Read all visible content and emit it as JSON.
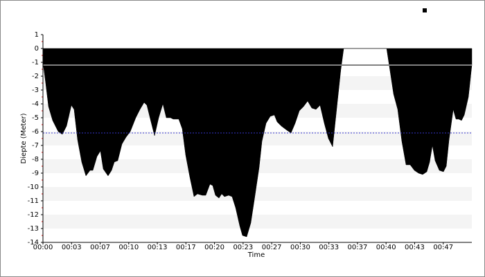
{
  "chart_data": {
    "type": "area",
    "x_label": "Time",
    "y_label": "Diepte (Meter)",
    "color": "#000000",
    "x": [
      0,
      0.32,
      0.65,
      1.13,
      1.78,
      2.26,
      2.75,
      3.31,
      3.63,
      4.04,
      4.52,
      5.01,
      5.49,
      5.82,
      6.3,
      6.7,
      7.03,
      7.59,
      8.0,
      8.32,
      8.72,
      9.21,
      9.69,
      10.18,
      10.82,
      11.31,
      11.79,
      12.12,
      12.52,
      13.01,
      13.49,
      13.98,
      14.38,
      14.86,
      15.19,
      15.83,
      16.24,
      16.64,
      17.13,
      17.61,
      18.01,
      18.58,
      18.98,
      19.47,
      19.79,
      20.11,
      20.52,
      20.84,
      21.16,
      21.65,
      22.05,
      22.46,
      22.94,
      23.26,
      23.75,
      24.23,
      24.72,
      25.2,
      25.53,
      26.01,
      26.5,
      26.98,
      27.3,
      27.79,
      28.43,
      28.92,
      29.4,
      29.89,
      30.37,
      30.86,
      31.34,
      31.83,
      32.31,
      32.8,
      33.28,
      33.77,
      34.25,
      34.73,
      35.06,
      40.07,
      40.39,
      40.88,
      41.36,
      41.84,
      42.33,
      42.81,
      43.3,
      43.78,
      44.27,
      44.75,
      45.08,
      45.4,
      45.72,
      46.21,
      46.69,
      47.02,
      47.34,
      47.83,
      48.15,
      48.47,
      48.8,
      49.12,
      49.6,
      50
    ],
    "values": [
      -1,
      -2.5,
      -4.2,
      -5.2,
      -6,
      -6.2,
      -5.6,
      -4.1,
      -4.4,
      -6.6,
      -8.2,
      -9.2,
      -8.8,
      -8.8,
      -7.8,
      -7.4,
      -8.7,
      -9.2,
      -8.8,
      -8.2,
      -8.1,
      -6.9,
      -6.4,
      -6,
      -5,
      -4.4,
      -3.9,
      -4.1,
      -5.1,
      -6.3,
      -5,
      -4,
      -5,
      -5,
      -5.1,
      -5.1,
      -5.8,
      -7.7,
      -9.3,
      -10.7,
      -10.5,
      -10.6,
      -10.6,
      -9.8,
      -9.9,
      -10.6,
      -10.8,
      -10.5,
      -10.7,
      -10.6,
      -10.7,
      -11.5,
      -12.8,
      -13.5,
      -13.6,
      -12.6,
      -10.6,
      -8.6,
      -6.7,
      -5.4,
      -4.9,
      -4.8,
      -5.3,
      -5.6,
      -5.9,
      -6.1,
      -5.4,
      -4.5,
      -4.2,
      -3.8,
      -4.3,
      -4.4,
      -4.1,
      -5.4,
      -6.5,
      -7.1,
      -4.3,
      -1.5,
      0,
      0,
      -1.3,
      -3.3,
      -4.4,
      -6.7,
      -8.4,
      -8.4,
      -8.8,
      -9,
      -9.1,
      -8.9,
      -8.2,
      -7,
      -8.1,
      -8.8,
      -8.9,
      -8.5,
      -6.6,
      -4.4,
      -5.1,
      -5.1,
      -5.2,
      -4.8,
      -3.5,
      -1.2
    ],
    "reference_lines": [
      {
        "value": -1.2,
        "color": "#ffffff"
      },
      {
        "value": -6.1,
        "color": "#3333cc"
      }
    ],
    "xlim": [
      0,
      50
    ],
    "xticks": [
      {
        "value": 0,
        "label": "00:00"
      },
      {
        "value": 3.333,
        "label": "00:03"
      },
      {
        "value": 6.667,
        "label": "00:07"
      },
      {
        "value": 10,
        "label": "00:10"
      },
      {
        "value": 13.333,
        "label": "00:13"
      },
      {
        "value": 16.667,
        "label": "00:17"
      },
      {
        "value": 20,
        "label": "00:20"
      },
      {
        "value": 23.333,
        "label": "00:23"
      },
      {
        "value": 26.667,
        "label": "00:27"
      },
      {
        "value": 30,
        "label": "00:30"
      },
      {
        "value": 33.333,
        "label": "00:33"
      },
      {
        "value": 36.667,
        "label": "00:37"
      },
      {
        "value": 40,
        "label": "00:40"
      },
      {
        "value": 43.333,
        "label": "00:43"
      },
      {
        "value": 46.667,
        "label": "00:47"
      }
    ],
    "ylim": [
      -14,
      1
    ],
    "yticks": [
      1,
      0,
      -1,
      -2,
      -3,
      -4,
      -5,
      -6,
      -7,
      -8,
      -9,
      -10,
      -11,
      -12,
      -13,
      -14
    ]
  }
}
